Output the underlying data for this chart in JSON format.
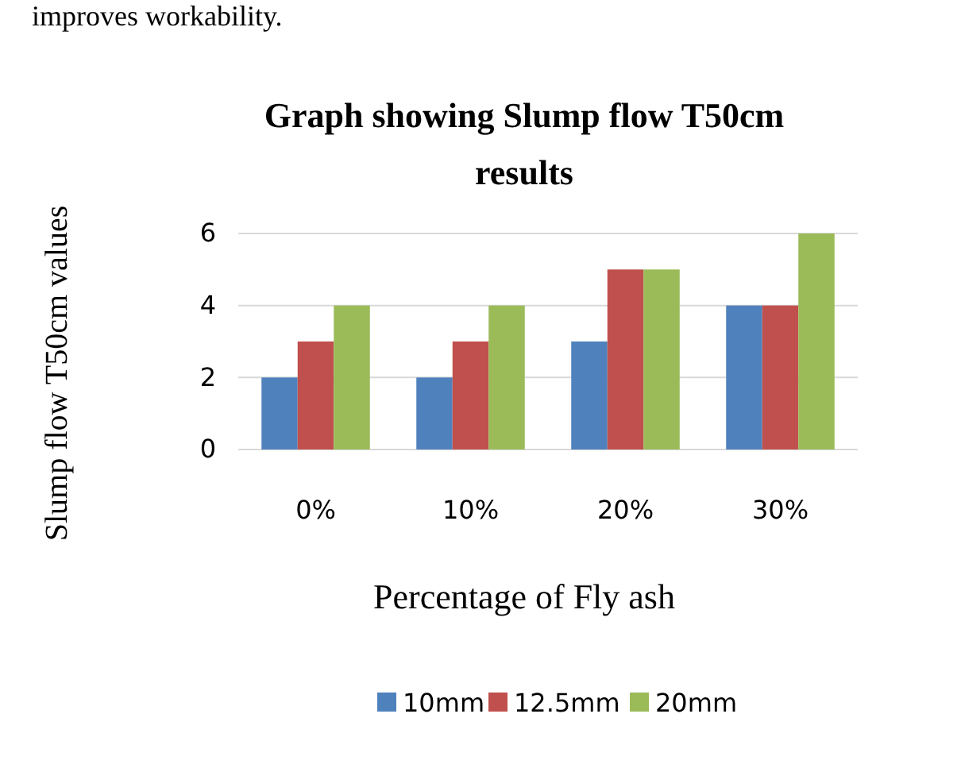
{
  "chart_data": {
    "type": "bar",
    "title": "Graph showing Slump flow T50cm results",
    "xlabel": "Percentage of Fly ash",
    "ylabel": "Slump flow T50cm values",
    "annotations": [
      "improves workability."
    ],
    "categories": [
      "0%",
      "10%",
      "20%",
      "30%"
    ],
    "series": [
      {
        "name": "10mm",
        "color": "#4f81bd",
        "values": [
          2,
          2,
          3,
          4
        ]
      },
      {
        "name": "12.5mm",
        "color": "#c0504d",
        "values": [
          3,
          3,
          5,
          4
        ]
      },
      {
        "name": "20mm",
        "color": "#9bbb59",
        "values": [
          4,
          4,
          5,
          6
        ]
      }
    ],
    "ylim": [
      0,
      6
    ],
    "yticks": [
      0,
      2,
      4,
      6
    ],
    "grid": "y",
    "legend": "bottom"
  }
}
